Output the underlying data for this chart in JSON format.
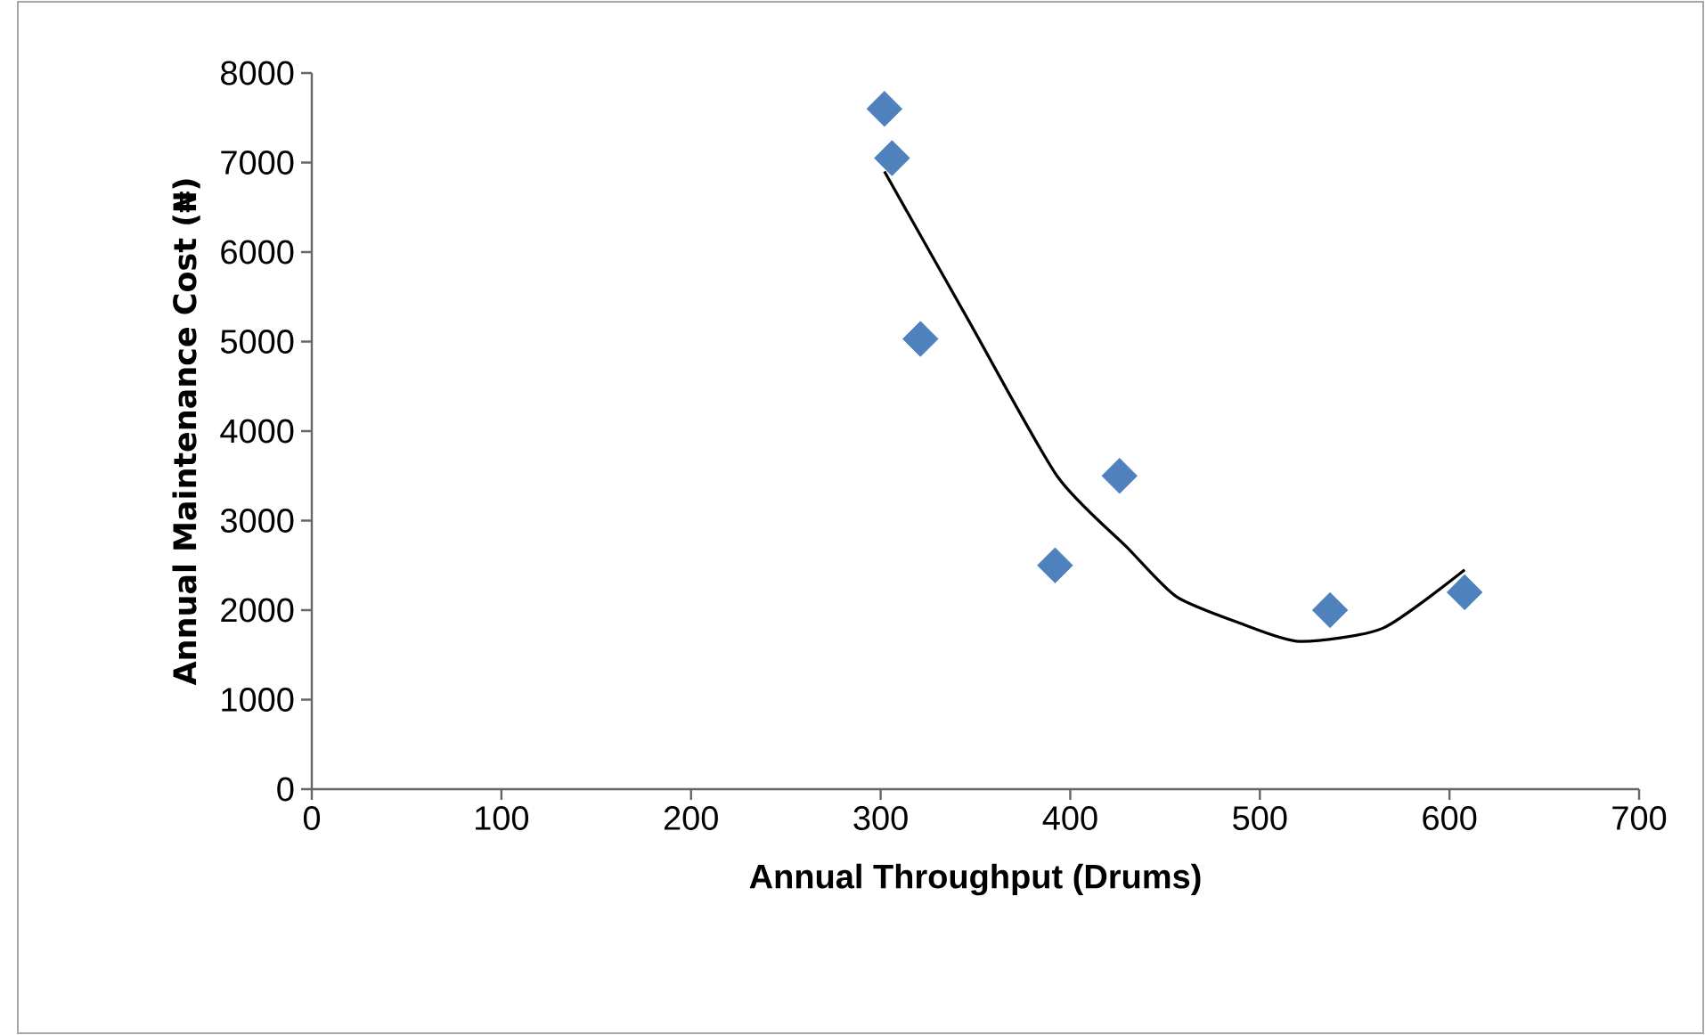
{
  "chart_data": {
    "type": "scatter",
    "xlabel": "Annual Throughput (Drums)",
    "ylabel": "Annual Maintenance Cost (₦)",
    "series": [
      {
        "color": "#4f81bd",
        "marker": "diamond",
        "x": [
          302,
          306,
          321,
          392,
          426,
          537,
          608
        ],
        "values": [
          7600,
          7050,
          5030,
          2500,
          3500,
          2000,
          2200
        ]
      },
      {
        "type": "line",
        "color": "#000000",
        "marker": "none",
        "line_style": "solid",
        "x": [
          302,
          346,
          393,
          430,
          456,
          490,
          521,
          565,
          608
        ],
        "values": [
          6900,
          5250,
          3500,
          2700,
          2150,
          1850,
          1650,
          1800,
          2450
        ]
      }
    ],
    "xlim": [
      0,
      700
    ],
    "xticks": [
      0,
      100,
      200,
      300,
      400,
      500,
      600,
      700
    ],
    "ylim": [
      0,
      8000
    ],
    "yticks": [
      0,
      1000,
      2000,
      3000,
      4000,
      5000,
      6000,
      7000,
      8000
    ],
    "grid": false
  }
}
